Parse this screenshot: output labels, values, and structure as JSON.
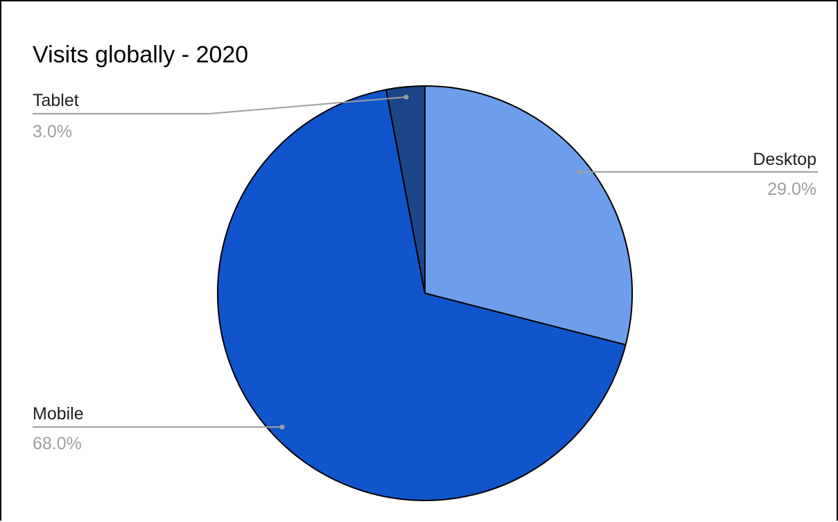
{
  "chart_data": {
    "type": "pie",
    "title": "Visits globally - 2020",
    "slices": [
      {
        "label": "Desktop",
        "value": 29.0,
        "display": "29.0%",
        "color": "#6d9eeb"
      },
      {
        "label": "Mobile",
        "value": 68.0,
        "display": "68.0%",
        "color": "#1155cc"
      },
      {
        "label": "Tablet",
        "value": 3.0,
        "display": "3.0%",
        "color": "#1c4587"
      }
    ],
    "start_angle_deg": 0,
    "direction": "clockwise",
    "label_style": "leader-lines-outside"
  }
}
